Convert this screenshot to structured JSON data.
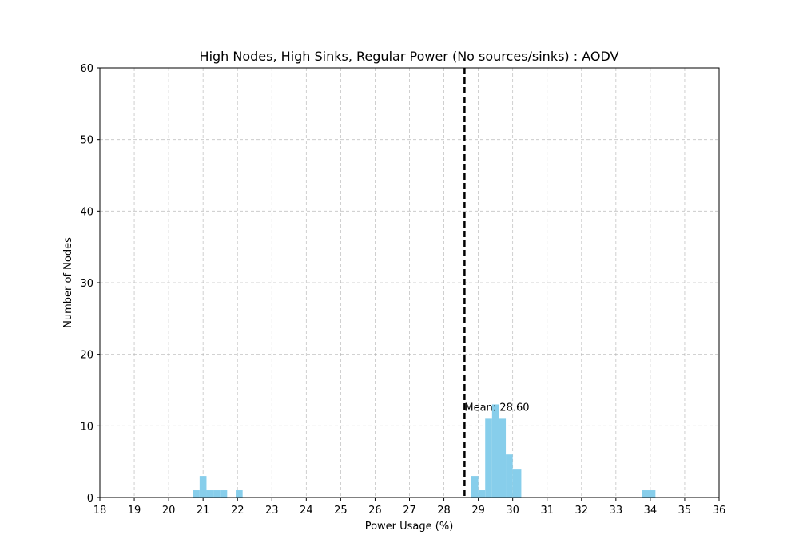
{
  "chart_data": {
    "type": "bar",
    "title": "High Nodes, High Sinks, Regular Power (No sources/sinks) : AODV",
    "xlabel": "Power Usage (%)",
    "ylabel": "Number of Nodes",
    "xlim": [
      18,
      36
    ],
    "ylim": [
      0,
      60
    ],
    "xticks": [
      18,
      19,
      20,
      21,
      22,
      23,
      24,
      25,
      26,
      27,
      28,
      29,
      30,
      31,
      32,
      33,
      34,
      35,
      36
    ],
    "yticks": [
      0,
      10,
      20,
      30,
      40,
      50,
      60
    ],
    "grid": true,
    "bar_color": "#87CEEB",
    "bins": [
      {
        "x0": 20.7,
        "x1": 20.9,
        "count": 1
      },
      {
        "x0": 20.9,
        "x1": 21.1,
        "count": 3
      },
      {
        "x0": 21.1,
        "x1": 21.3,
        "count": 1
      },
      {
        "x0": 21.3,
        "x1": 21.5,
        "count": 1
      },
      {
        "x0": 21.5,
        "x1": 21.7,
        "count": 1
      },
      {
        "x0": 21.95,
        "x1": 22.15,
        "count": 1
      },
      {
        "x0": 28.8,
        "x1": 29.0,
        "count": 3
      },
      {
        "x0": 29.0,
        "x1": 29.2,
        "count": 1
      },
      {
        "x0": 29.2,
        "x1": 29.4,
        "count": 11
      },
      {
        "x0": 29.4,
        "x1": 29.6,
        "count": 13
      },
      {
        "x0": 29.6,
        "x1": 29.8,
        "count": 11
      },
      {
        "x0": 29.8,
        "x1": 30.0,
        "count": 6
      },
      {
        "x0": 30.0,
        "x1": 30.25,
        "count": 4
      },
      {
        "x0": 33.75,
        "x1": 34.15,
        "count": 1
      }
    ],
    "mean": {
      "value": 28.6,
      "label": "Mean: 28.60",
      "line_style": "dashed",
      "color": "#000000"
    }
  }
}
